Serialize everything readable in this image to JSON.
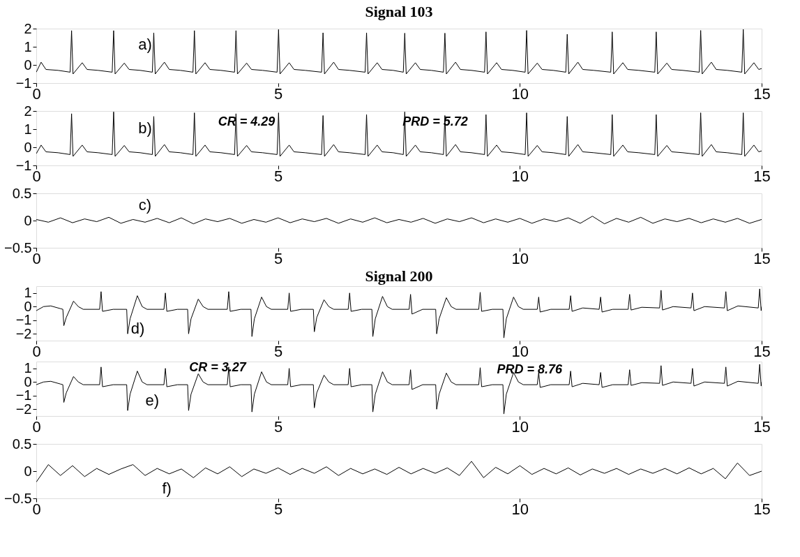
{
  "chart_data": [
    {
      "type": "line",
      "title": "Signal 103",
      "x": [
        0,
        0.1,
        0.2,
        0.45,
        0.7,
        0.73,
        0.76,
        0.95,
        1.05,
        1.28,
        1.57,
        1.6,
        1.63,
        1.82,
        1.92,
        2.15,
        2.4,
        2.43,
        2.46,
        2.65,
        2.75,
        2.98,
        3.24,
        3.27,
        3.3,
        3.49,
        3.59,
        3.82,
        4.1,
        4.13,
        4.16,
        4.35,
        4.45,
        4.68,
        4.98,
        5.01,
        5.04,
        5.23,
        5.33,
        5.56,
        5.9,
        5.93,
        5.96,
        6.15,
        6.25,
        6.48,
        6.8,
        6.83,
        6.86,
        7.05,
        7.15,
        7.38,
        7.59,
        7.62,
        7.65,
        7.84,
        7.94,
        8.17,
        8.42,
        8.45,
        8.48,
        8.67,
        8.77,
        9.0,
        9.27,
        9.3,
        9.33,
        9.52,
        9.62,
        9.85,
        10.11,
        10.14,
        10.17,
        10.36,
        10.46,
        10.69,
        10.95,
        10.98,
        11.01,
        11.2,
        11.3,
        11.53,
        11.88,
        11.91,
        11.94,
        12.13,
        12.23,
        12.46,
        12.79,
        12.82,
        12.85,
        13.04,
        13.14,
        13.37,
        13.71,
        13.74,
        13.77,
        13.96,
        14.06,
        14.29,
        14.59,
        14.62,
        14.65,
        14.84,
        14.94,
        15.0
      ],
      "series": [
        {
          "color": "#000000",
          "values": [
            -0.4,
            0.15,
            -0.25,
            -0.3,
            -0.4,
            1.89,
            -0.5,
            0.12,
            -0.25,
            -0.3,
            -0.4,
            1.89,
            -0.5,
            0.1,
            -0.25,
            -0.3,
            -0.4,
            1.77,
            -0.5,
            0.15,
            -0.25,
            -0.3,
            -0.4,
            1.89,
            -0.5,
            0.12,
            -0.25,
            -0.3,
            -0.4,
            1.89,
            -0.5,
            0.1,
            -0.25,
            -0.3,
            -0.4,
            1.95,
            -0.5,
            0.12,
            -0.25,
            -0.3,
            -0.4,
            1.77,
            -0.5,
            0.15,
            -0.25,
            -0.3,
            -0.4,
            1.77,
            -0.5,
            0.12,
            -0.25,
            -0.3,
            -0.4,
            1.75,
            -0.5,
            0.12,
            -0.25,
            -0.3,
            -0.4,
            1.75,
            -0.5,
            0.15,
            -0.25,
            -0.3,
            -0.4,
            1.82,
            -0.5,
            0.12,
            -0.25,
            -0.3,
            -0.4,
            1.9,
            -0.5,
            0.1,
            -0.25,
            -0.3,
            -0.4,
            1.69,
            -0.5,
            0.15,
            -0.25,
            -0.3,
            -0.4,
            1.82,
            -0.5,
            0.12,
            -0.25,
            -0.3,
            -0.4,
            1.82,
            -0.5,
            0.1,
            -0.25,
            -0.3,
            -0.4,
            1.9,
            -0.5,
            0.15,
            -0.25,
            -0.3,
            -0.4,
            1.96,
            -0.5,
            0.12,
            -0.25,
            -0.2
          ]
        }
      ],
      "xlim": [
        0,
        15
      ],
      "xticks": [
        0,
        5,
        10,
        15
      ],
      "ylim": [
        -1,
        2
      ],
      "yticks": [
        -1,
        0,
        1,
        2
      ],
      "annotations": [
        "a)"
      ]
    },
    {
      "type": "line",
      "x": [
        0,
        0.1,
        0.2,
        0.45,
        0.7,
        0.73,
        0.76,
        0.95,
        1.05,
        1.28,
        1.57,
        1.6,
        1.63,
        1.82,
        1.92,
        2.15,
        2.4,
        2.43,
        2.46,
        2.65,
        2.75,
        2.98,
        3.24,
        3.27,
        3.3,
        3.49,
        3.59,
        3.82,
        4.1,
        4.13,
        4.16,
        4.35,
        4.45,
        4.68,
        4.98,
        5.01,
        5.04,
        5.23,
        5.33,
        5.56,
        5.9,
        5.93,
        5.96,
        6.15,
        6.25,
        6.48,
        6.8,
        6.83,
        6.86,
        7.05,
        7.15,
        7.38,
        7.59,
        7.62,
        7.65,
        7.84,
        7.94,
        8.17,
        8.42,
        8.45,
        8.48,
        8.67,
        8.77,
        9.0,
        9.27,
        9.3,
        9.33,
        9.52,
        9.62,
        9.85,
        10.11,
        10.14,
        10.17,
        10.36,
        10.46,
        10.69,
        10.95,
        10.98,
        11.01,
        11.2,
        11.3,
        11.53,
        11.88,
        11.91,
        11.94,
        12.13,
        12.23,
        12.46,
        12.79,
        12.82,
        12.85,
        13.04,
        13.14,
        13.37,
        13.71,
        13.74,
        13.77,
        13.96,
        14.06,
        14.29,
        14.59,
        14.62,
        14.65,
        14.84,
        14.94,
        15.0
      ],
      "series": [
        {
          "color": "#000000",
          "values": [
            -0.35,
            0.12,
            -0.25,
            -0.3,
            -0.4,
            1.85,
            -0.5,
            0.12,
            -0.25,
            -0.3,
            -0.4,
            1.95,
            -0.5,
            0.1,
            -0.25,
            -0.3,
            -0.4,
            1.7,
            -0.5,
            0.15,
            -0.25,
            -0.3,
            -0.4,
            1.9,
            -0.5,
            0.12,
            -0.25,
            -0.3,
            -0.4,
            1.85,
            -0.5,
            0.1,
            -0.25,
            -0.3,
            -0.4,
            1.9,
            -0.5,
            0.12,
            -0.25,
            -0.3,
            -0.4,
            1.75,
            -0.5,
            0.15,
            -0.25,
            -0.3,
            -0.4,
            1.8,
            -0.5,
            0.12,
            -0.25,
            -0.3,
            -0.4,
            1.95,
            -0.5,
            0.12,
            -0.25,
            -0.3,
            -0.4,
            1.75,
            -0.5,
            0.15,
            -0.25,
            -0.3,
            -0.4,
            1.8,
            -0.5,
            0.12,
            -0.25,
            -0.3,
            -0.4,
            1.9,
            -0.5,
            0.1,
            -0.25,
            -0.3,
            -0.4,
            1.7,
            -0.5,
            0.15,
            -0.25,
            -0.3,
            -0.4,
            1.8,
            -0.5,
            0.12,
            -0.25,
            -0.3,
            -0.4,
            1.8,
            -0.5,
            0.1,
            -0.25,
            -0.3,
            -0.4,
            1.9,
            -0.5,
            0.15,
            -0.25,
            -0.3,
            -0.4,
            1.9,
            -0.5,
            0.12,
            -0.25,
            -0.2
          ]
        }
      ],
      "xlim": [
        0,
        15
      ],
      "xticks": [
        0,
        5,
        10,
        15
      ],
      "ylim": [
        -1,
        2
      ],
      "yticks": [
        -1,
        0,
        1,
        2
      ],
      "annotations": [
        "b)",
        "CR = 4.29",
        "PRD = 5.72"
      ]
    },
    {
      "type": "line",
      "x": [
        0,
        0.25,
        0.5,
        0.75,
        1,
        1.25,
        1.5,
        1.75,
        2,
        2.25,
        2.5,
        2.75,
        3,
        3.25,
        3.5,
        3.75,
        4,
        4.25,
        4.5,
        4.75,
        5,
        5.25,
        5.5,
        5.75,
        6,
        6.25,
        6.5,
        6.75,
        7,
        7.25,
        7.5,
        7.75,
        8,
        8.25,
        8.5,
        8.75,
        9,
        9.25,
        9.5,
        9.75,
        10,
        10.25,
        10.5,
        10.75,
        11,
        11.25,
        11.5,
        11.75,
        12,
        12.25,
        12.5,
        12.75,
        13,
        13.25,
        13.5,
        13.75,
        14,
        14.25,
        14.5,
        14.75,
        15
      ],
      "series": [
        {
          "color": "#000000",
          "values": [
            0.02,
            -0.03,
            0.05,
            -0.04,
            0.03,
            -0.02,
            0.06,
            -0.05,
            0.02,
            -0.03,
            0.04,
            -0.04,
            0.05,
            -0.06,
            0.03,
            -0.02,
            0.04,
            -0.05,
            0.02,
            -0.03,
            0.05,
            -0.04,
            0.03,
            -0.02,
            0.04,
            -0.05,
            0.03,
            -0.03,
            0.05,
            -0.04,
            0.02,
            -0.03,
            0.04,
            -0.05,
            0.03,
            -0.02,
            0.05,
            -0.04,
            0.03,
            -0.03,
            0.04,
            -0.05,
            0.03,
            -0.02,
            0.05,
            -0.05,
            0.08,
            -0.06,
            0.04,
            -0.03,
            0.06,
            -0.05,
            0.03,
            -0.02,
            0.04,
            -0.04,
            0.03,
            -0.03,
            0.04,
            -0.05,
            0.02
          ]
        }
      ],
      "xlim": [
        0,
        15
      ],
      "xticks": [
        0,
        5,
        10,
        15
      ],
      "ylim": [
        -0.5,
        0.5
      ],
      "yticks": [
        -0.5,
        0,
        0.5
      ],
      "annotations": [
        "c)"
      ]
    },
    {
      "type": "line",
      "title": "Signal 200",
      "x": [
        0,
        0.15,
        0.3,
        0.5,
        0.55,
        0.57,
        0.62,
        0.77,
        0.87,
        0.97,
        1.31,
        1.34,
        1.37,
        1.59,
        1.87,
        1.89,
        1.94,
        2.09,
        2.19,
        2.29,
        2.64,
        2.67,
        2.7,
        2.92,
        3.13,
        3.15,
        3.2,
        3.35,
        3.45,
        3.55,
        3.95,
        3.98,
        4.01,
        4.23,
        4.44,
        4.46,
        4.51,
        4.66,
        4.76,
        4.86,
        5.2,
        5.23,
        5.26,
        5.48,
        5.73,
        5.75,
        5.8,
        5.95,
        6.05,
        6.15,
        6.45,
        6.48,
        6.51,
        6.73,
        6.94,
        6.96,
        7.01,
        7.16,
        7.26,
        7.36,
        7.71,
        7.74,
        7.77,
        7.99,
        8.26,
        8.28,
        8.33,
        8.48,
        8.58,
        8.68,
        9.15,
        9.18,
        9.21,
        9.43,
        9.65,
        9.67,
        9.72,
        9.87,
        9.97,
        10.07,
        10.36,
        10.39,
        10.42,
        10.64,
        11.02,
        11.05,
        11.08,
        11.3,
        11.64,
        11.67,
        11.7,
        11.92,
        12.24,
        12.27,
        12.3,
        12.52,
        12.89,
        12.92,
        12.95,
        13.17,
        13.54,
        13.57,
        13.6,
        13.82,
        14.23,
        14.26,
        14.29,
        14.51,
        14.93,
        14.96,
        14.99,
        15.0
      ],
      "series": [
        {
          "color": "#000000",
          "values": [
            -0.3,
            0.0,
            0.05,
            -0.15,
            -0.2,
            -1.4,
            -0.8,
            0.4,
            0.0,
            -0.2,
            -0.2,
            1.1,
            -0.35,
            -0.2,
            -0.2,
            -2.0,
            -0.9,
            0.8,
            0.0,
            -0.2,
            -0.2,
            1.0,
            -0.35,
            -0.2,
            -0.2,
            -2.0,
            -0.9,
            0.55,
            0.0,
            -0.2,
            -0.2,
            1.1,
            -0.35,
            -0.2,
            -0.2,
            -2.2,
            -0.9,
            0.7,
            0.0,
            -0.2,
            -0.2,
            1.0,
            -0.35,
            -0.2,
            -0.2,
            -1.85,
            -0.8,
            0.5,
            0.0,
            -0.2,
            -0.2,
            1.0,
            -0.35,
            -0.2,
            -0.2,
            -2.2,
            -0.9,
            0.75,
            0.0,
            -0.2,
            -0.2,
            0.9,
            -0.55,
            -0.2,
            -0.2,
            -2.0,
            -0.9,
            0.65,
            0.0,
            -0.2,
            -0.2,
            1.05,
            -0.35,
            -0.2,
            -0.2,
            -2.3,
            -0.9,
            0.7,
            0.0,
            -0.2,
            -0.2,
            0.7,
            -0.4,
            -0.2,
            -0.2,
            0.8,
            -0.35,
            -0.1,
            -0.2,
            0.7,
            -0.4,
            -0.2,
            -0.2,
            0.9,
            -0.25,
            -0.05,
            -0.1,
            1.2,
            -0.25,
            0.0,
            -0.1,
            1.0,
            -0.3,
            0.0,
            -0.1,
            1.1,
            -0.3,
            0.05,
            -0.1,
            1.3,
            -0.3,
            0.0
          ]
        }
      ],
      "xlim": [
        0,
        15
      ],
      "xticks": [
        0,
        5,
        10,
        15
      ],
      "ylim": [
        -2.5,
        1.5
      ],
      "yticks": [
        -2,
        -1,
        0,
        1
      ],
      "annotations": [
        "d)"
      ]
    },
    {
      "type": "line",
      "x": [
        0,
        0.15,
        0.3,
        0.5,
        0.55,
        0.57,
        0.62,
        0.77,
        0.87,
        0.97,
        1.31,
        1.34,
        1.37,
        1.59,
        1.87,
        1.89,
        1.94,
        2.09,
        2.19,
        2.29,
        2.64,
        2.67,
        2.7,
        2.92,
        3.13,
        3.15,
        3.2,
        3.35,
        3.45,
        3.55,
        3.95,
        3.98,
        4.01,
        4.23,
        4.44,
        4.46,
        4.51,
        4.66,
        4.76,
        4.86,
        5.2,
        5.23,
        5.26,
        5.48,
        5.73,
        5.75,
        5.8,
        5.95,
        6.05,
        6.15,
        6.45,
        6.48,
        6.51,
        6.73,
        6.94,
        6.96,
        7.01,
        7.16,
        7.26,
        7.36,
        7.71,
        7.74,
        7.77,
        7.99,
        8.26,
        8.28,
        8.33,
        8.48,
        8.58,
        8.68,
        9.15,
        9.18,
        9.21,
        9.43,
        9.65,
        9.67,
        9.72,
        9.87,
        9.97,
        10.07,
        10.36,
        10.39,
        10.42,
        10.64,
        11.02,
        11.05,
        11.08,
        11.3,
        11.64,
        11.67,
        11.7,
        11.92,
        12.24,
        12.27,
        12.3,
        12.52,
        12.89,
        12.92,
        12.95,
        13.17,
        13.54,
        13.57,
        13.6,
        13.82,
        14.23,
        14.26,
        14.29,
        14.51,
        14.93,
        14.96,
        14.99,
        15.0
      ],
      "series": [
        {
          "color": "#000000",
          "values": [
            -0.2,
            0.0,
            0.05,
            -0.15,
            -0.2,
            -1.5,
            -0.8,
            0.4,
            0.0,
            -0.2,
            -0.2,
            1.1,
            -0.35,
            -0.2,
            -0.2,
            -2.1,
            -0.9,
            0.8,
            0.0,
            -0.2,
            -0.2,
            1.0,
            -0.35,
            -0.2,
            -0.2,
            -2.1,
            -0.9,
            0.6,
            0.0,
            -0.2,
            -0.2,
            1.1,
            -0.35,
            -0.2,
            -0.2,
            -2.2,
            -0.9,
            0.75,
            0.0,
            -0.2,
            -0.2,
            1.0,
            -0.35,
            -0.2,
            -0.2,
            -1.9,
            -0.8,
            0.5,
            0.0,
            -0.2,
            -0.2,
            1.0,
            -0.35,
            -0.2,
            -0.2,
            -2.2,
            -0.9,
            0.75,
            0.0,
            -0.2,
            -0.2,
            0.9,
            -0.55,
            -0.2,
            -0.2,
            -2.0,
            -0.9,
            0.65,
            0.0,
            -0.2,
            -0.2,
            1.05,
            -0.35,
            -0.2,
            -0.2,
            -2.35,
            -0.9,
            0.7,
            0.0,
            -0.2,
            -0.2,
            0.7,
            -0.4,
            -0.2,
            -0.2,
            0.8,
            -0.35,
            -0.1,
            -0.2,
            0.7,
            -0.4,
            -0.2,
            -0.2,
            0.9,
            -0.25,
            -0.05,
            -0.1,
            1.2,
            -0.25,
            0.0,
            -0.1,
            1.0,
            -0.3,
            0.0,
            -0.1,
            1.1,
            -0.3,
            0.05,
            -0.1,
            1.3,
            -0.3,
            0.0
          ]
        }
      ],
      "xlim": [
        0,
        15
      ],
      "xticks": [
        0,
        5,
        10,
        15
      ],
      "ylim": [
        -2.5,
        1.5
      ],
      "yticks": [
        -2,
        -1,
        0,
        1
      ],
      "annotations": [
        "e)",
        "CR = 3.27",
        "PRD = 8.76"
      ]
    },
    {
      "type": "line",
      "x": [
        0,
        0.25,
        0.5,
        0.75,
        1,
        1.25,
        1.5,
        1.75,
        2,
        2.25,
        2.5,
        2.75,
        3,
        3.25,
        3.5,
        3.75,
        4,
        4.25,
        4.5,
        4.75,
        5,
        5.25,
        5.5,
        5.75,
        6,
        6.25,
        6.5,
        6.75,
        7,
        7.25,
        7.5,
        7.75,
        8,
        8.25,
        8.5,
        8.75,
        9,
        9.25,
        9.5,
        9.75,
        10,
        10.25,
        10.5,
        10.75,
        11,
        11.25,
        11.5,
        11.75,
        12,
        12.25,
        12.5,
        12.75,
        13,
        13.25,
        13.5,
        13.75,
        14,
        14.25,
        14.5,
        14.75,
        15
      ],
      "series": [
        {
          "color": "#000000",
          "values": [
            -0.2,
            0.12,
            -0.08,
            0.1,
            -0.1,
            0.05,
            -0.06,
            0.04,
            0.12,
            -0.08,
            0.05,
            -0.05,
            0.04,
            -0.12,
            0.06,
            -0.05,
            0.08,
            -0.1,
            0.04,
            -0.04,
            0.06,
            -0.06,
            0.05,
            -0.04,
            0.08,
            -0.08,
            0.05,
            -0.05,
            0.04,
            -0.06,
            0.07,
            -0.05,
            0.05,
            -0.04,
            0.06,
            -0.08,
            0.18,
            -0.12,
            0.07,
            -0.05,
            0.1,
            -0.06,
            0.05,
            -0.05,
            0.06,
            -0.07,
            0.04,
            -0.04,
            0.05,
            -0.06,
            0.04,
            -0.04,
            0.05,
            -0.05,
            0.06,
            -0.05,
            0.05,
            -0.14,
            0.15,
            -0.08,
            0.0
          ]
        }
      ],
      "xlim": [
        0,
        15
      ],
      "xticks": [
        0,
        5,
        10,
        15
      ],
      "ylim": [
        -0.5,
        0.5
      ],
      "yticks": [
        -0.5,
        0,
        0.5
      ],
      "annotations": [
        "f)"
      ]
    }
  ]
}
